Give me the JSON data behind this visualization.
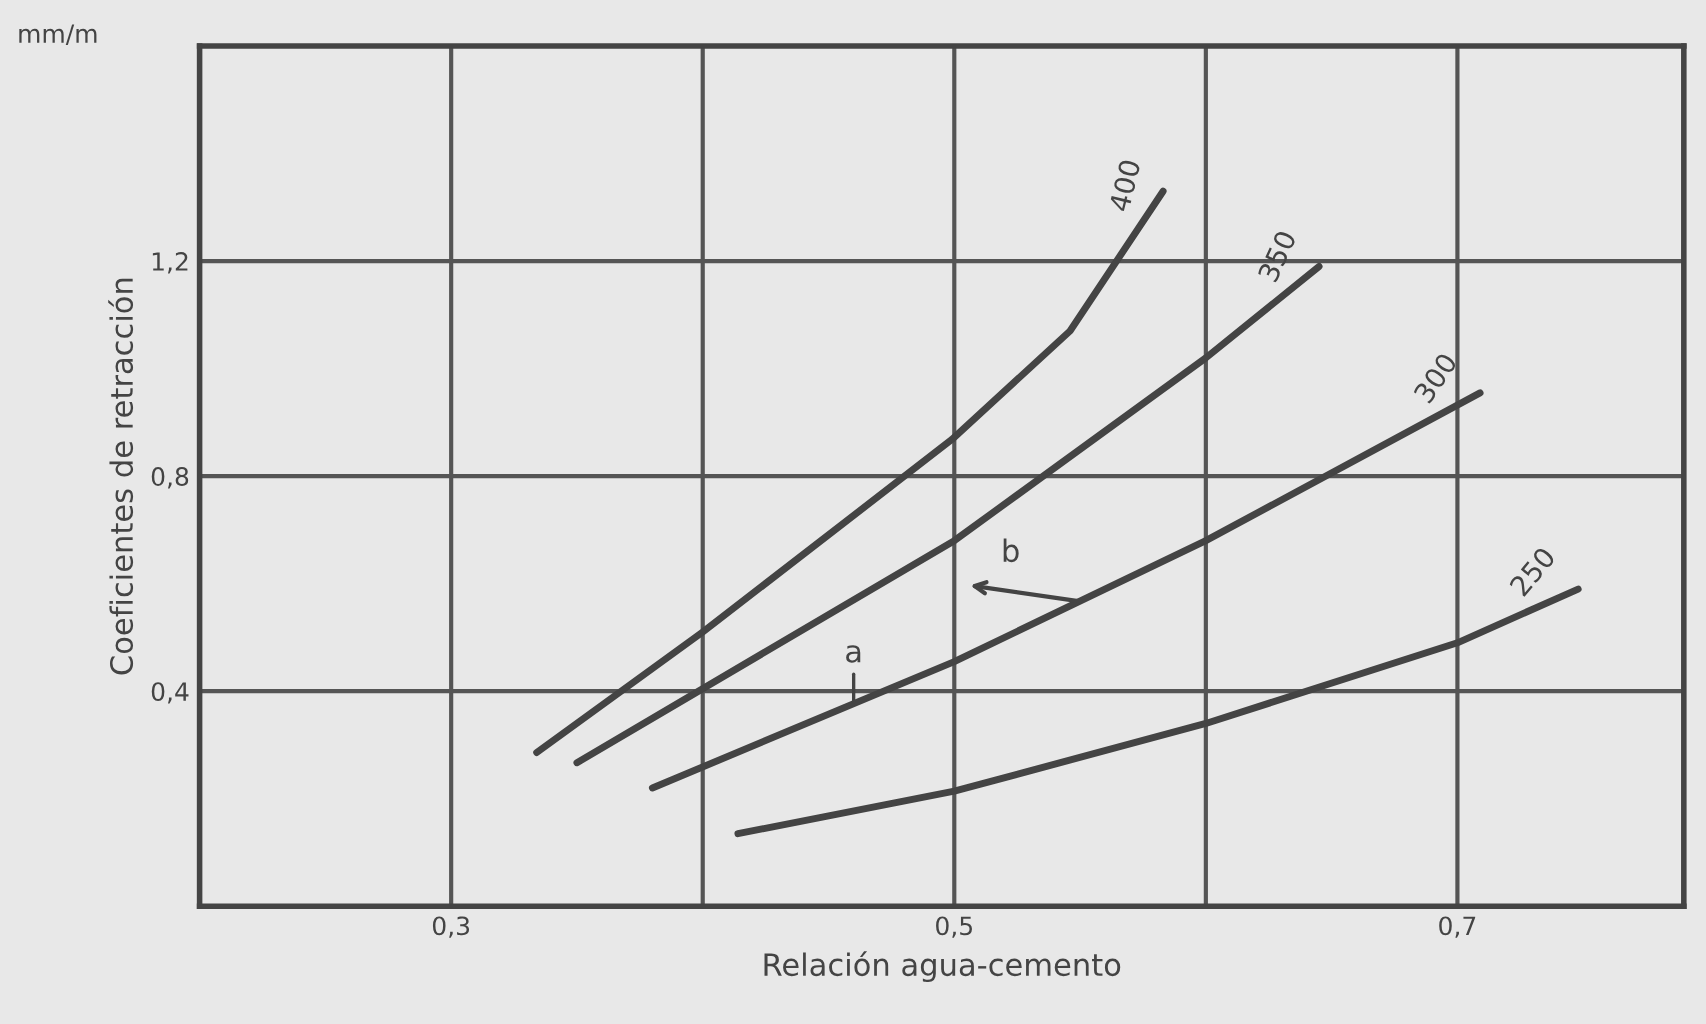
{
  "chart_data": {
    "type": "line",
    "xlabel": "Relación agua-cemento",
    "ylabel": "Coeficientes de retracción",
    "xlim": [
      0.2,
      0.79
    ],
    "ylim": [
      0,
      1.6
    ],
    "xticks": [
      {
        "value": 0.3,
        "label": "0,3"
      },
      {
        "value": 0.4,
        "label": null
      },
      {
        "value": 0.5,
        "label": "0,5"
      },
      {
        "value": 0.6,
        "label": null
      },
      {
        "value": 0.7,
        "label": "0,7"
      }
    ],
    "yticks": [
      {
        "value": 0.4,
        "label": "0,4"
      },
      {
        "value": 0.8,
        "label": "0,8"
      },
      {
        "value": 1.2,
        "label": "1,2"
      }
    ],
    "grid": true,
    "marker": "none",
    "line_style": "solid",
    "series": [
      {
        "name": "400",
        "color": "#444444",
        "x": [
          0.334,
          0.4,
          0.499,
          0.546,
          0.583
        ],
        "values": [
          0.286,
          0.51,
          0.868,
          1.07,
          1.33
        ]
      },
      {
        "name": "350",
        "color": "#444444",
        "x": [
          0.35,
          0.5,
          0.6,
          0.645
        ],
        "values": [
          0.267,
          0.68,
          1.02,
          1.19
        ]
      },
      {
        "name": "300",
        "color": "#444444",
        "x": [
          0.38,
          0.5,
          0.6,
          0.709
        ],
        "values": [
          0.22,
          0.455,
          0.68,
          0.955
        ]
      },
      {
        "name": "250",
        "color": "#444444",
        "x": [
          0.414,
          0.5,
          0.6,
          0.7,
          0.748
        ],
        "values": [
          0.135,
          0.214,
          0.34,
          0.49,
          0.59
        ]
      }
    ],
    "annotations": [
      "mm/m",
      {
        "text": "a",
        "x": 0.46,
        "y": 0.38
      },
      {
        "text": "b",
        "x": 0.55,
        "y": 0.567
      }
    ]
  }
}
